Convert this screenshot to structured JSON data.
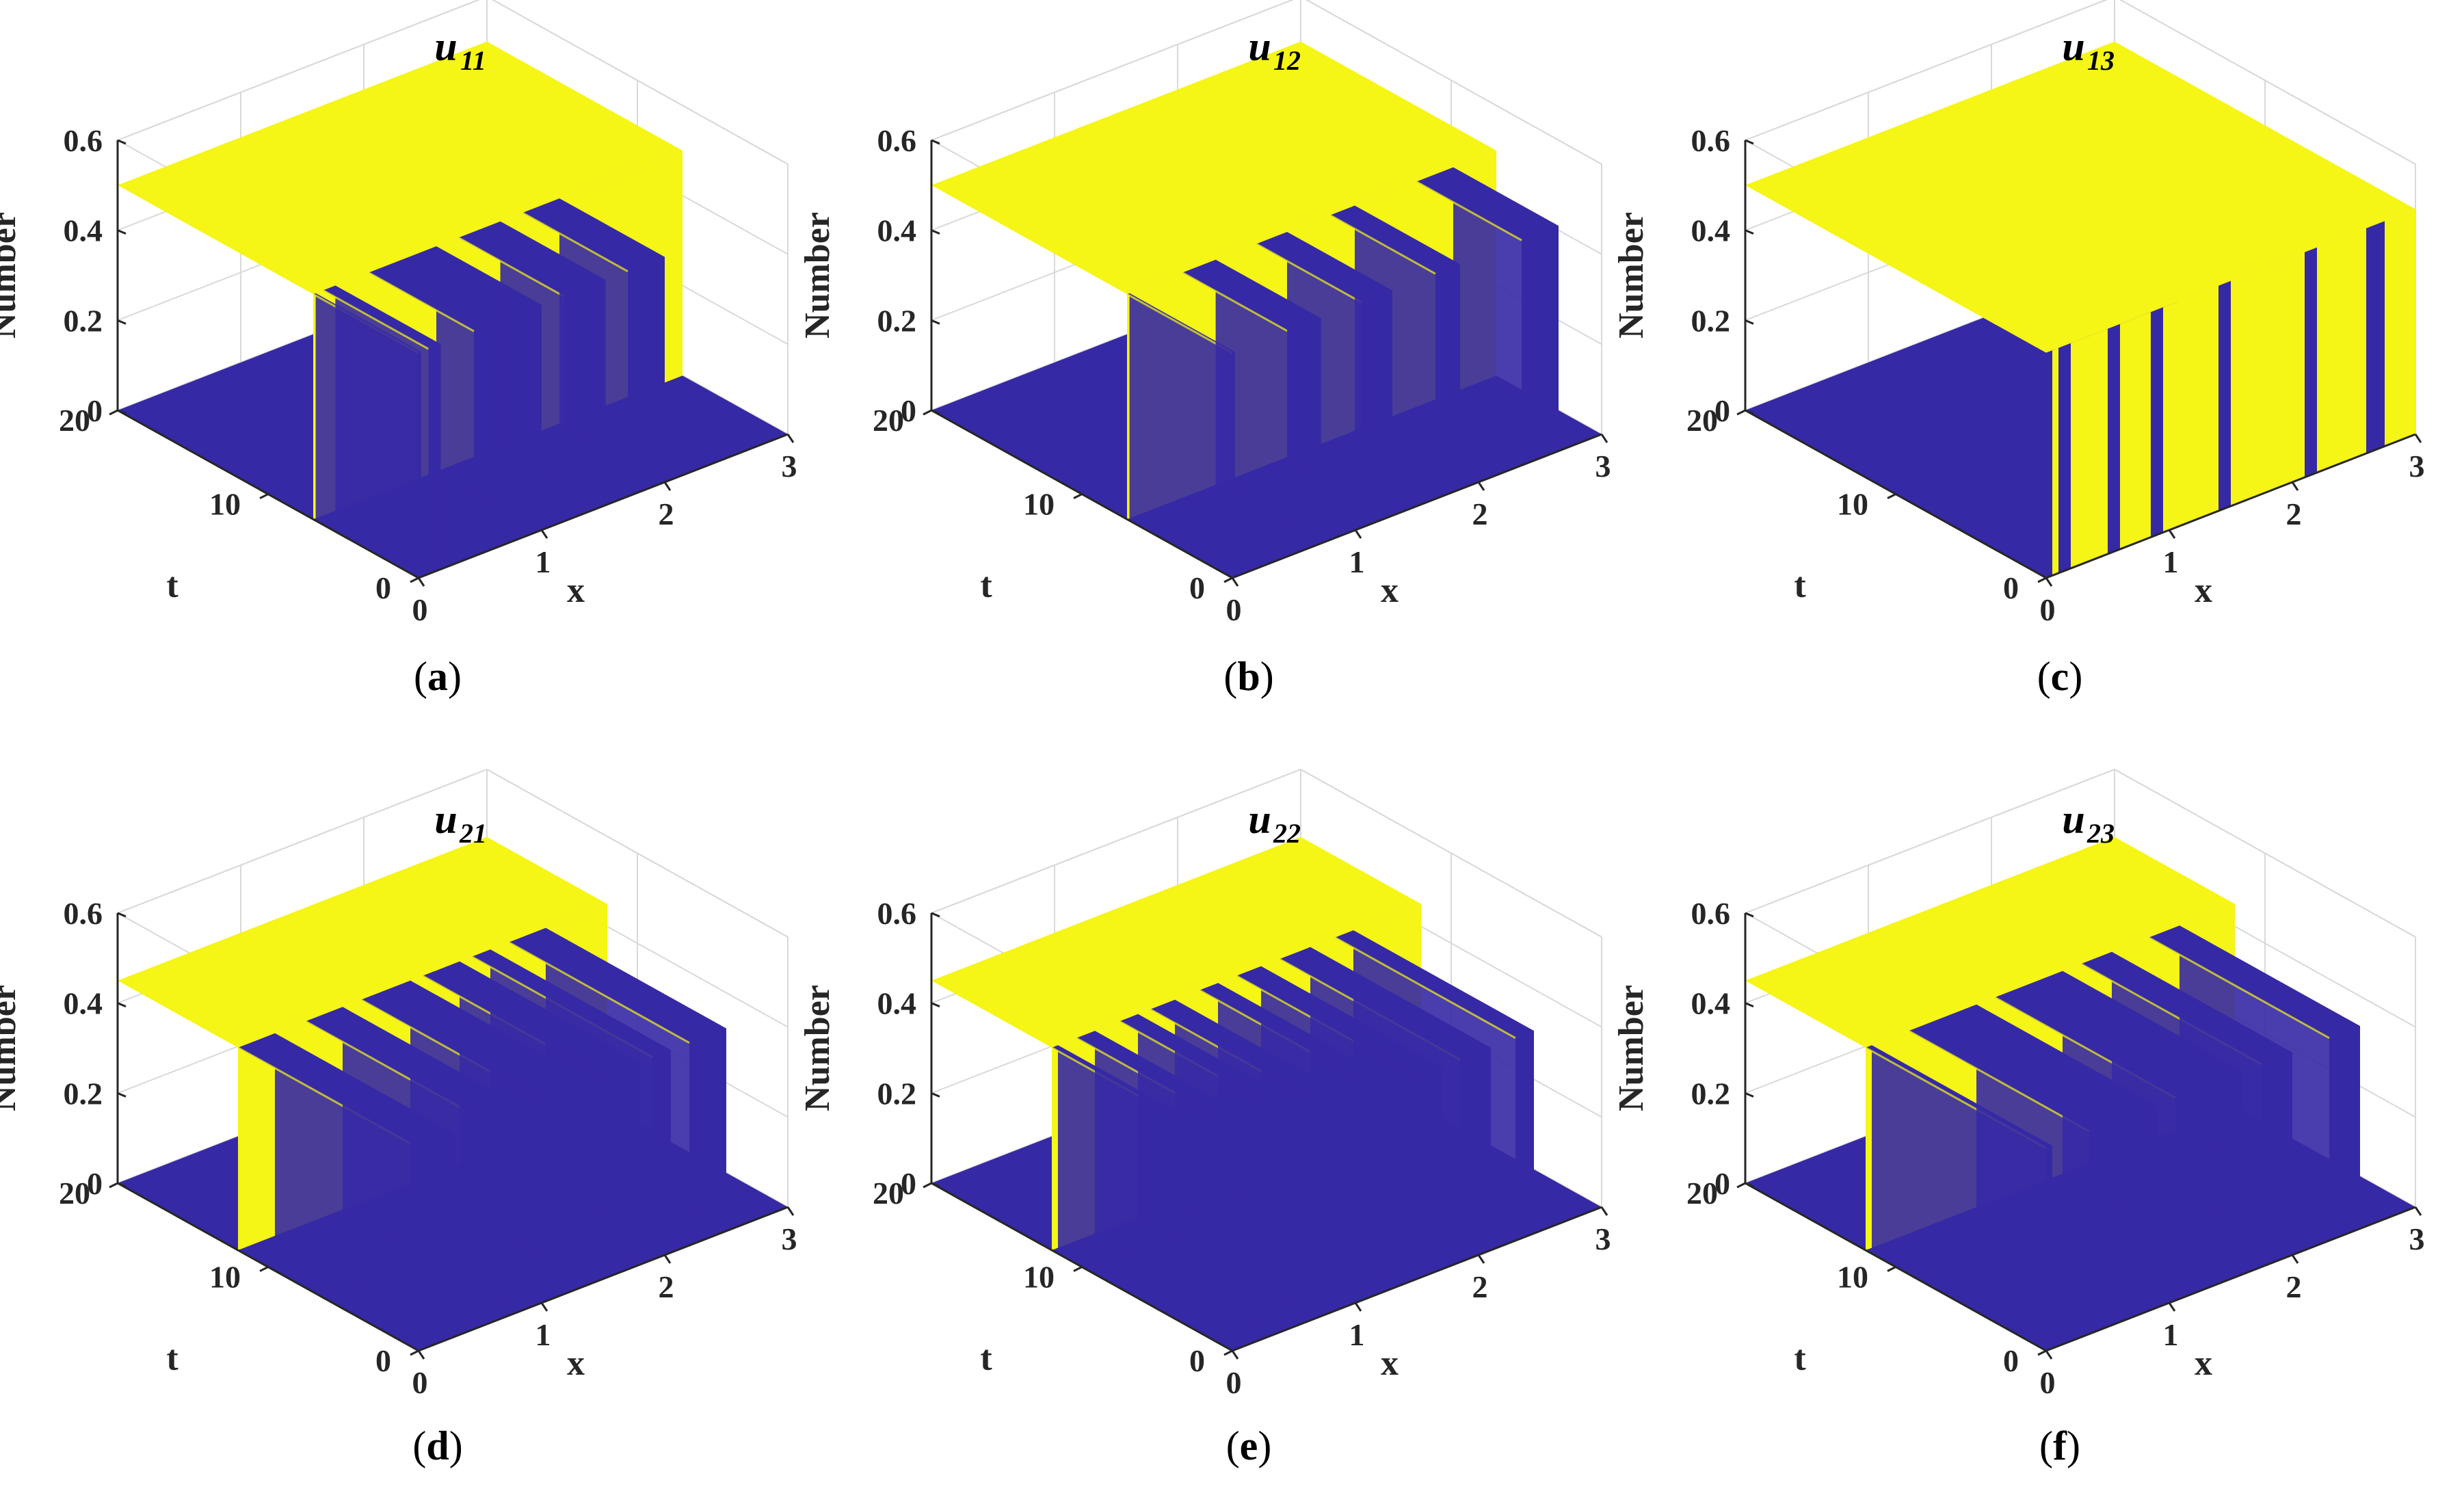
{
  "colors": {
    "high": "#F5F516",
    "low": "#3629A5",
    "grid": "#D9D9D9",
    "axis": "#262626"
  },
  "chart_data": [
    {
      "panel_label": "a",
      "type": "surface",
      "title": {
        "main": "u",
        "sub": "11"
      },
      "xlabel": "x",
      "ylabel": "t",
      "zlabel": "Number",
      "xlim": [
        0,
        3
      ],
      "ylim": [
        0,
        20
      ],
      "zlim": [
        0,
        0.6
      ],
      "xticks": [
        "0",
        "1",
        "2",
        "3"
      ],
      "yticks": [
        "0",
        "10",
        "20"
      ],
      "zticks": [
        "0",
        "0.2",
        "0.4",
        "0.6"
      ],
      "low_value": 0,
      "high_value": 0.5,
      "high_region_t_start": 7,
      "high_x_intervals": [
        [
          0,
          0.02
        ],
        [
          0.08,
          0.18
        ],
        [
          0.45,
          1.0
        ],
        [
          1.18,
          1.52
        ],
        [
          1.7,
          2.0
        ]
      ],
      "curtain_top": 0.5
    },
    {
      "panel_label": "b",
      "type": "surface",
      "title": {
        "main": "u",
        "sub": "12"
      },
      "xlabel": "x",
      "ylabel": "t",
      "zlabel": "Number",
      "xlim": [
        0,
        3
      ],
      "ylim": [
        0,
        20
      ],
      "zlim": [
        0,
        0.6
      ],
      "xticks": [
        "0",
        "1",
        "2",
        "3"
      ],
      "yticks": [
        "0",
        "10",
        "20"
      ],
      "zticks": [
        "0",
        "0.2",
        "0.4",
        "0.6"
      ],
      "low_value": 0,
      "high_value": 0.5,
      "high_region_t_start": 7,
      "high_x_intervals": [
        [
          0,
          0.02
        ],
        [
          0.45,
          0.72
        ],
        [
          1.05,
          1.3
        ],
        [
          1.65,
          1.85
        ],
        [
          2.35,
          2.65
        ]
      ],
      "curtain_top": 0.5
    },
    {
      "panel_label": "c",
      "type": "surface",
      "title": {
        "main": "u",
        "sub": "13"
      },
      "xlabel": "x",
      "ylabel": "t",
      "zlabel": "Number",
      "xlim": [
        0,
        3
      ],
      "ylim": [
        0,
        20
      ],
      "zlim": [
        0,
        0.6
      ],
      "xticks": [
        "0",
        "1",
        "2",
        "3"
      ],
      "yticks": [
        "0",
        "10",
        "20"
      ],
      "zticks": [
        "0",
        "0.2",
        "0.4",
        "0.6"
      ],
      "low_value": 0,
      "high_value": 0.5,
      "high_region_t_start": 0,
      "high_x_intervals": [
        [
          0,
          0.05
        ],
        [
          0.1,
          0.2
        ],
        [
          0.5,
          0.6
        ],
        [
          0.85,
          0.95
        ],
        [
          1.4,
          1.5
        ],
        [
          2.1,
          2.2
        ],
        [
          2.6,
          2.75
        ]
      ],
      "curtain_top": 0.5
    },
    {
      "panel_label": "d",
      "type": "surface",
      "title": {
        "main": "u",
        "sub": "21"
      },
      "xlabel": "x",
      "ylabel": "t",
      "zlabel": "Number",
      "xlim": [
        0,
        3
      ],
      "ylim": [
        0,
        20
      ],
      "zlim": [
        0,
        0.6
      ],
      "xticks": [
        "0",
        "1",
        "2",
        "3"
      ],
      "yticks": [
        "0",
        "10",
        "20"
      ],
      "zticks": [
        "0",
        "0.2",
        "0.4",
        "0.6"
      ],
      "low_value": 0,
      "high_value": 0.45,
      "high_region_t_start": 12,
      "high_x_intervals": [
        [
          0,
          0.3
        ],
        [
          0.55,
          0.85
        ],
        [
          1.0,
          1.4
        ],
        [
          1.5,
          1.8
        ],
        [
          1.9,
          2.05
        ],
        [
          2.2,
          2.5
        ]
      ],
      "curtain_top": 0.45
    },
    {
      "panel_label": "e",
      "type": "surface",
      "title": {
        "main": "u",
        "sub": "22"
      },
      "xlabel": "x",
      "ylabel": "t",
      "zlabel": "Number",
      "xlim": [
        0,
        3
      ],
      "ylim": [
        0,
        20
      ],
      "zlim": [
        0,
        0.6
      ],
      "xticks": [
        "0",
        "1",
        "2",
        "3"
      ],
      "yticks": [
        "0",
        "10",
        "20"
      ],
      "zticks": [
        "0",
        "0.2",
        "0.4",
        "0.6"
      ],
      "low_value": 0,
      "high_value": 0.45,
      "high_region_t_start": 12,
      "high_x_intervals": [
        [
          0,
          0.05
        ],
        [
          0.2,
          0.35
        ],
        [
          0.55,
          0.7
        ],
        [
          0.8,
          1.0
        ],
        [
          1.2,
          1.35
        ],
        [
          1.5,
          1.7
        ],
        [
          1.85,
          2.1
        ],
        [
          2.3,
          2.45
        ]
      ],
      "curtain_top": 0.45
    },
    {
      "panel_label": "f",
      "type": "surface",
      "title": {
        "main": "u",
        "sub": "23"
      },
      "xlabel": "x",
      "ylabel": "t",
      "zlabel": "Number",
      "xlim": [
        0,
        3
      ],
      "ylim": [
        0,
        20
      ],
      "zlim": [
        0,
        0.6
      ],
      "xticks": [
        "0",
        "1",
        "2",
        "3"
      ],
      "yticks": [
        "0",
        "10",
        "20"
      ],
      "zticks": [
        "0",
        "0.2",
        "0.4",
        "0.6"
      ],
      "low_value": 0,
      "high_value": 0.45,
      "high_region_t_start": 12,
      "high_x_intervals": [
        [
          0,
          0.05
        ],
        [
          0.35,
          0.9
        ],
        [
          1.05,
          1.6
        ],
        [
          1.75,
          2.0
        ],
        [
          2.3,
          2.55
        ]
      ],
      "curtain_top": 0.45
    }
  ]
}
